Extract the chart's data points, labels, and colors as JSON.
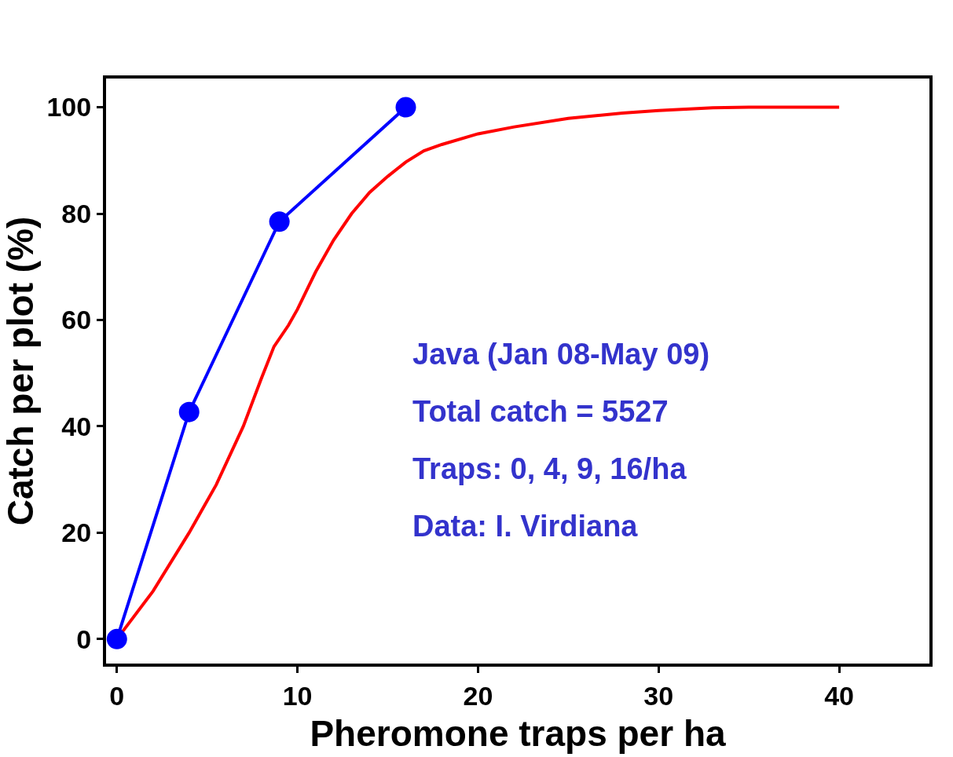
{
  "chart_data": {
    "type": "line",
    "xlabel": "Pheromone traps per ha",
    "ylabel": "Catch per plot (%)",
    "series": [
      {
        "color": "#ff0000",
        "marker": "none",
        "x": [
          0,
          2,
          4,
          5.5,
          7,
          8,
          8.7,
          9.5,
          10,
          11,
          12,
          13,
          14,
          15,
          16,
          17,
          18,
          20,
          22,
          25,
          28,
          30,
          33,
          35,
          38,
          40
        ],
        "values": [
          0,
          9,
          20,
          29,
          40,
          49,
          55,
          59,
          62,
          69,
          75,
          80,
          84,
          87,
          89.7,
          91.8,
          93,
          95,
          96.3,
          97.9,
          98.9,
          99.4,
          99.9,
          100,
          100,
          100
        ]
      },
      {
        "color": "#0000ff",
        "marker": "circle",
        "x": [
          0,
          4,
          9,
          16
        ],
        "values": [
          0,
          42.7,
          78.5,
          100
        ]
      }
    ],
    "xlim": [
      -0.6,
      45
    ],
    "xticks": [
      0,
      10,
      20,
      30,
      40
    ],
    "ylim": [
      -4.6,
      105.4
    ],
    "yticks": [
      0,
      20,
      40,
      60,
      80,
      100
    ],
    "annotations": [
      "Java (Jan 08-May 09)",
      "Total catch = 5527",
      "Traps: 0, 4, 9, 16/ha",
      "Data: I. Virdiana"
    ]
  }
}
